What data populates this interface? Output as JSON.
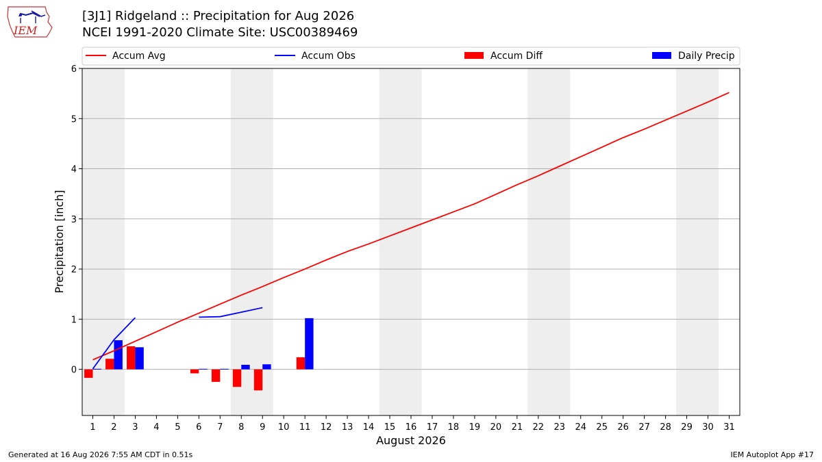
{
  "header": {
    "title": "[3J1] Ridgeland :: Precipitation for Aug 2026",
    "subtitle": "NCEI 1991-2020 Climate Site: USC00389469",
    "logo_text": "IEM"
  },
  "footer": {
    "left": "Generated at 16 Aug 2026 7:55 AM CDT in 0.51s",
    "right": "IEM Autoplot App #17"
  },
  "colors": {
    "avg": "#ff0000",
    "obs": "#0000ff",
    "diff": "#ff0000",
    "daily": "#0000ff",
    "weekend_band": "#eeeeee",
    "grid": "#b0b0b0"
  },
  "chart_data": {
    "type": "bar",
    "xlabel": "August 2026",
    "ylabel": "Precipitation [inch]",
    "xlim": [
      0.5,
      31.5
    ],
    "ylim": [
      -0.92,
      6
    ],
    "yticks": [
      0,
      1,
      2,
      3,
      4,
      5,
      6
    ],
    "categories": [
      1,
      2,
      3,
      4,
      5,
      6,
      7,
      8,
      9,
      10,
      11,
      12,
      13,
      14,
      15,
      16,
      17,
      18,
      19,
      20,
      21,
      22,
      23,
      24,
      25,
      26,
      27,
      28,
      29,
      30,
      31
    ],
    "grid": true,
    "legend_placement": "top",
    "legend": [
      "Accum Avg",
      "Accum Obs",
      "Accum Diff",
      "Daily Precip"
    ],
    "shaded_days": [
      [
        1,
        2
      ],
      [
        8,
        9
      ],
      [
        15,
        16
      ],
      [
        22,
        23
      ],
      [
        29,
        30
      ]
    ],
    "series": [
      {
        "name": "Accum Avg",
        "kind": "line",
        "x": [
          1,
          2,
          3,
          4,
          5,
          6,
          7,
          8,
          9,
          10,
          11,
          12,
          13,
          14,
          15,
          16,
          17,
          18,
          19,
          20,
          21,
          22,
          23,
          24,
          25,
          26,
          27,
          28,
          29,
          30,
          31
        ],
        "values": [
          0.19,
          0.37,
          0.56,
          0.75,
          0.94,
          1.12,
          1.3,
          1.48,
          1.65,
          1.83,
          2.0,
          2.18,
          2.35,
          2.5,
          2.66,
          2.82,
          2.98,
          3.14,
          3.3,
          3.49,
          3.68,
          3.86,
          4.05,
          4.24,
          4.43,
          4.62,
          4.79,
          4.97,
          5.15,
          5.33,
          5.52
        ]
      },
      {
        "name": "Accum Obs",
        "kind": "line",
        "segments": [
          {
            "x": [
              1,
              2,
              3
            ],
            "values": [
              0.01,
              0.59,
              1.03
            ]
          },
          {
            "x": [
              6,
              7,
              8,
              9
            ],
            "values": [
              1.04,
              1.05,
              1.14,
              1.23
            ]
          }
        ]
      },
      {
        "name": "Accum Diff",
        "kind": "bar",
        "offset": "left",
        "x": [
          1,
          2,
          3,
          6,
          7,
          8,
          9,
          11
        ],
        "values": [
          -0.17,
          0.21,
          0.46,
          -0.08,
          -0.25,
          -0.35,
          -0.42,
          0.24
        ]
      },
      {
        "name": "Daily Precip",
        "kind": "bar",
        "offset": "right",
        "x": [
          1,
          2,
          3,
          6,
          7,
          8,
          9,
          11
        ],
        "values": [
          0.01,
          0.58,
          0.44,
          0.01,
          0.01,
          0.09,
          0.1,
          1.02
        ]
      }
    ]
  }
}
